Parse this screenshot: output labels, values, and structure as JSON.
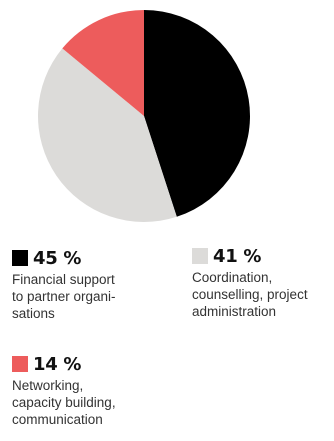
{
  "chart_data": {
    "type": "pie",
    "slices": [
      {
        "label": "Financial support\nto partner organi-\nsations",
        "value": 45,
        "value_label": "45 %",
        "color": "#000000"
      },
      {
        "label": "Coordination,\ncounselling, project\nadministration",
        "value": 41,
        "value_label": "41 %",
        "color": "#dcdbd9"
      },
      {
        "label": "Networking,\ncapacity building,\ncommunication",
        "value": 14,
        "value_label": "14 %",
        "color": "#ed5c5c"
      }
    ],
    "start_angle_deg": 0,
    "direction": "clockwise",
    "legend_placement": "bottom"
  }
}
